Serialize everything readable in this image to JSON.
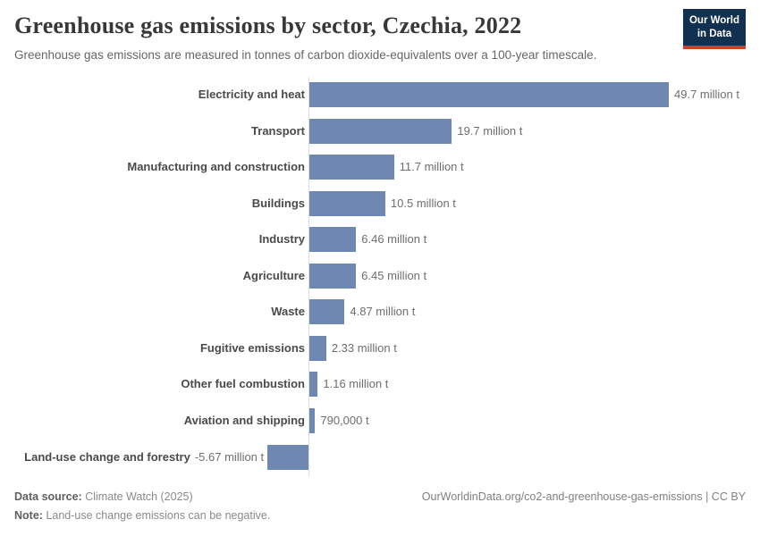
{
  "header": {
    "title": "Greenhouse gas emissions by sector, Czechia, 2022",
    "subtitle": "Greenhouse gas emissions are measured in tonnes of carbon dioxide-equivalents over a 100-year timescale.",
    "logo": {
      "line1": "Our World",
      "line2": "in Data",
      "bg_color": "#12304f",
      "accent_color": "#d13b33"
    }
  },
  "chart_data": {
    "type": "bar",
    "orientation": "horizontal",
    "title": "Greenhouse gas emissions by sector, Czechia, 2022",
    "unit": "tonnes of carbon dioxide-equivalents",
    "categories": [
      "Electricity and heat",
      "Transport",
      "Manufacturing and construction",
      "Buildings",
      "Industry",
      "Agriculture",
      "Waste",
      "Fugitive emissions",
      "Other fuel combustion",
      "Aviation and shipping",
      "Land-use change and forestry"
    ],
    "values_million_t": [
      49.7,
      19.7,
      11.7,
      10.5,
      6.46,
      6.45,
      4.87,
      2.33,
      1.16,
      0.79,
      -5.67
    ],
    "value_labels": [
      "49.7 million t",
      "19.7 million t",
      "11.7 million t",
      "10.5 million t",
      "6.46 million t",
      "6.45 million t",
      "4.87 million t",
      "2.33 million t",
      "1.16 million t",
      "790,000 t",
      "-5.67 million t"
    ],
    "xlim": [
      -5.67,
      49.7
    ],
    "grid": false,
    "legend": false,
    "bar_color": "#6e88b1",
    "axis_color": "#dddddd"
  },
  "footer": {
    "datasource_label": "Data source:",
    "datasource_value": "Climate Watch (2025)",
    "note_label": "Note:",
    "note_value": "Land-use change emissions can be negative.",
    "link": "OurWorldinData.org/co2-and-greenhouse-gas-emissions | CC BY"
  }
}
